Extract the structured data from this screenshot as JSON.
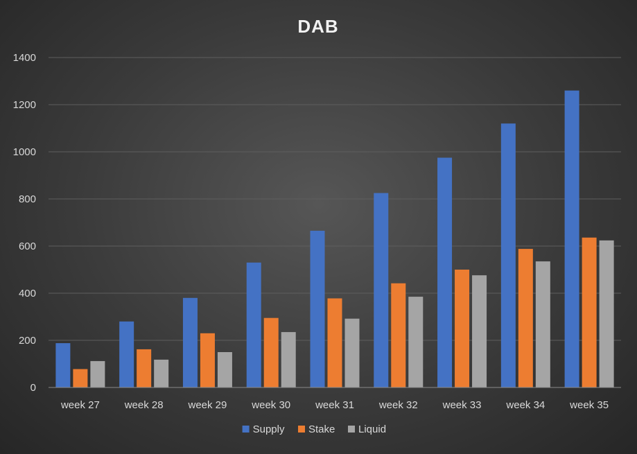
{
  "chart_data": {
    "type": "bar",
    "title": "DAB",
    "categories": [
      "week 27",
      "week 28",
      "week 29",
      "week 30",
      "week 31",
      "week 32",
      "week 33",
      "week 34",
      "week 35"
    ],
    "series": [
      {
        "name": "Supply",
        "color": "#4472c4",
        "values": [
          188,
          280,
          380,
          530,
          665,
          825,
          975,
          1120,
          1260
        ]
      },
      {
        "name": "Stake",
        "color": "#ed7d31",
        "values": [
          78,
          162,
          230,
          295,
          378,
          442,
          500,
          588,
          636
        ]
      },
      {
        "name": "Liquid",
        "color": "#a5a5a5",
        "values": [
          112,
          118,
          150,
          235,
          292,
          385,
          476,
          535,
          624
        ]
      }
    ],
    "ylim": [
      0,
      1400
    ],
    "yticks": [
      "0",
      "200",
      "400",
      "600",
      "800",
      "1000",
      "1200",
      "1400"
    ],
    "grid": true,
    "legend": "bottom"
  }
}
